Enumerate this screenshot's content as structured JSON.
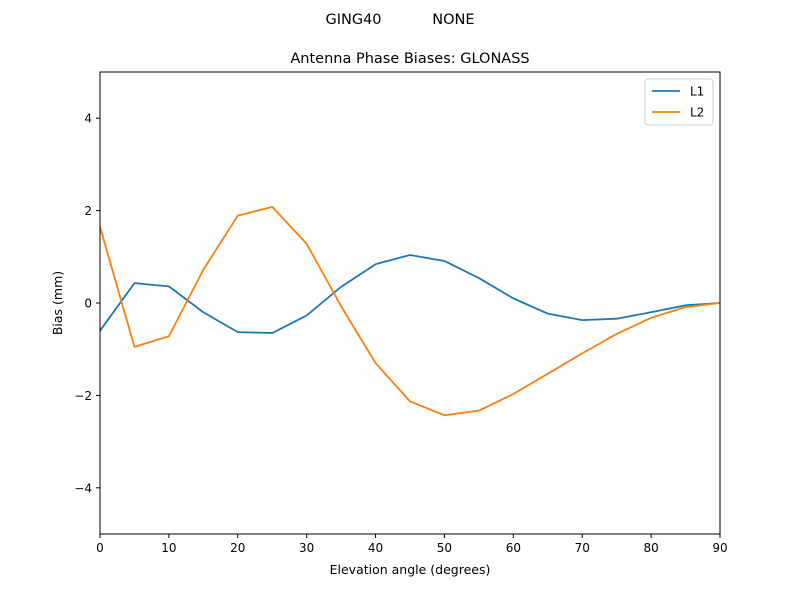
{
  "figure": {
    "suptitle": "GING40           NONE"
  },
  "chart_data": {
    "type": "line",
    "title": "Antenna Phase Biases: GLONASS",
    "xlabel": "Elevation angle (degrees)",
    "ylabel": "Bias (mm)",
    "xlim": [
      0,
      90
    ],
    "ylim": [
      -5,
      5
    ],
    "xticks": [
      0,
      10,
      20,
      30,
      40,
      50,
      60,
      70,
      80,
      90
    ],
    "yticks": [
      -4,
      -2,
      0,
      2,
      4
    ],
    "xtick_labels": [
      "0",
      "10",
      "20",
      "30",
      "40",
      "50",
      "60",
      "70",
      "80",
      "90"
    ],
    "ytick_labels": [
      "−4",
      "−2",
      "0",
      "2",
      "4"
    ],
    "grid": false,
    "legend_position": "top-right",
    "x": [
      0,
      5,
      10,
      15,
      20,
      25,
      30,
      35,
      40,
      45,
      50,
      55,
      60,
      65,
      70,
      75,
      80,
      85,
      90
    ],
    "series": [
      {
        "name": "L1",
        "color": "#1f77b4",
        "values": [
          -0.6,
          0.43,
          0.36,
          -0.2,
          -0.63,
          -0.65,
          -0.27,
          0.35,
          0.84,
          1.04,
          0.91,
          0.54,
          0.1,
          -0.23,
          -0.37,
          -0.34,
          -0.2,
          -0.05,
          0.0
        ]
      },
      {
        "name": "L2",
        "color": "#ff7f0e",
        "values": [
          1.65,
          -0.95,
          -0.72,
          0.72,
          1.89,
          2.08,
          1.28,
          -0.07,
          -1.3,
          -2.13,
          -2.43,
          -2.33,
          -1.97,
          -1.53,
          -1.09,
          -0.67,
          -0.32,
          -0.09,
          0.0
        ]
      }
    ]
  }
}
